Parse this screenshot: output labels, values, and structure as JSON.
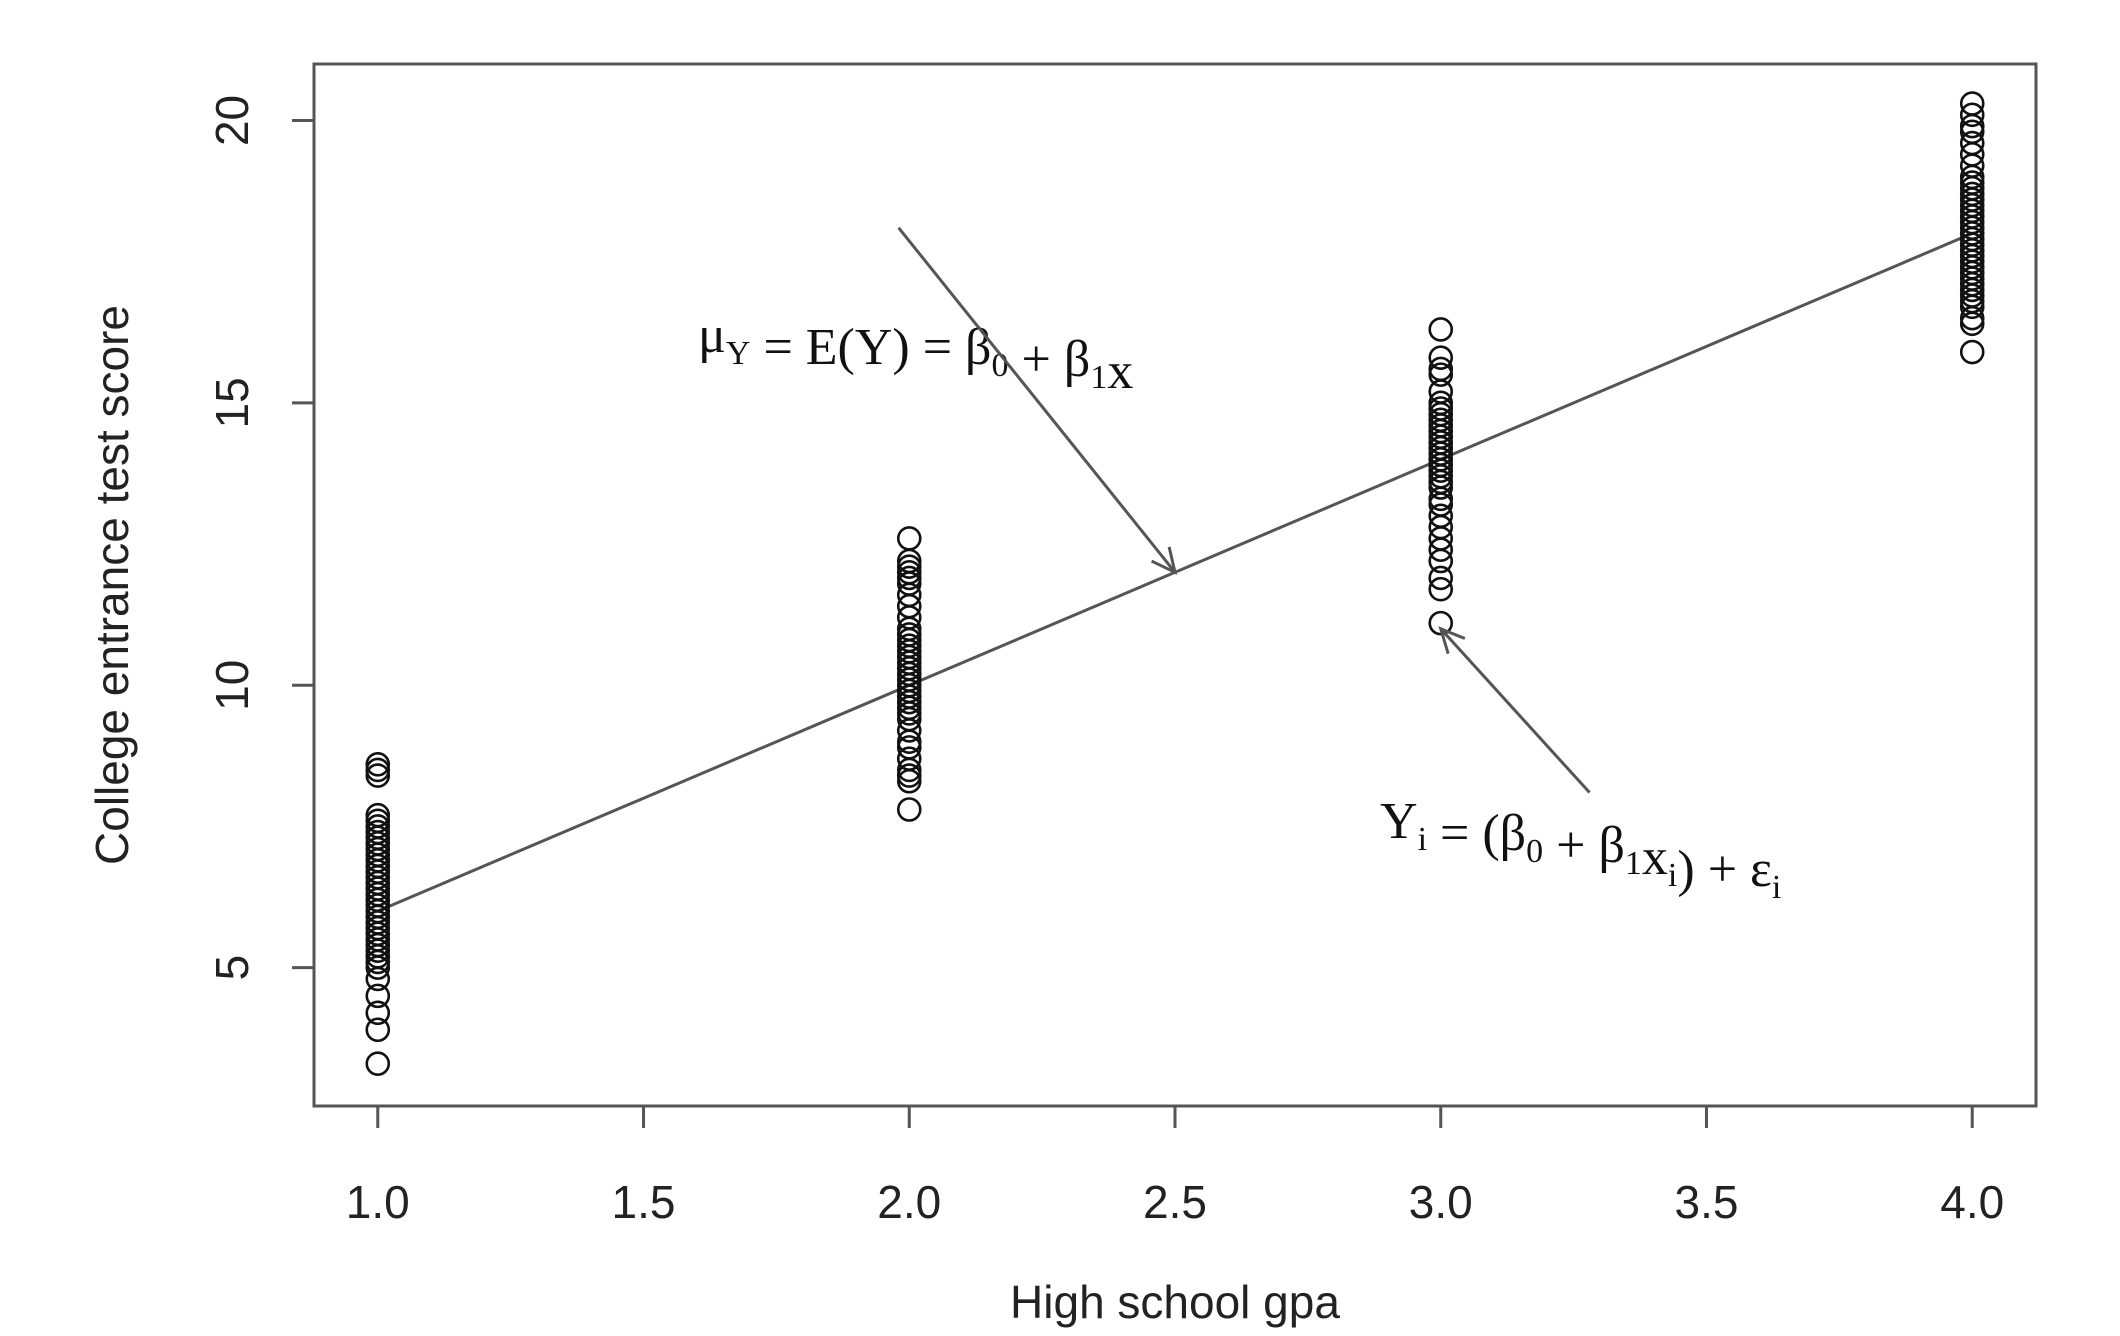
{
  "chart_data": {
    "type": "scatter",
    "xlabel": "High school gpa",
    "ylabel": "College entrance test score",
    "xlim": [
      0.88,
      4.12
    ],
    "ylim": [
      2.55,
      21.0
    ],
    "x_ticks": [
      "1.0",
      "1.5",
      "2.0",
      "2.5",
      "3.0",
      "3.5",
      "4.0"
    ],
    "x_tick_values": [
      1.0,
      1.5,
      2.0,
      2.5,
      3.0,
      3.5,
      4.0
    ],
    "y_ticks": [
      "5",
      "10",
      "15",
      "20"
    ],
    "y_tick_values": [
      5,
      10,
      15,
      20
    ],
    "grid": false,
    "regression_line": {
      "intercept": 2,
      "slope": 4,
      "x_range": [
        1.0,
        4.0
      ]
    },
    "points": [
      {
        "x": 1.0,
        "y": [
          3.3,
          3.9,
          4.2,
          4.5,
          4.8,
          5.0,
          5.1,
          5.2,
          5.3,
          5.4,
          5.5,
          5.6,
          5.7,
          5.8,
          5.9,
          6.0,
          6.1,
          6.2,
          6.3,
          6.4,
          6.5,
          6.6,
          6.7,
          6.8,
          6.9,
          7.0,
          7.1,
          7.2,
          7.3,
          7.4,
          7.5,
          7.6,
          7.7,
          8.4,
          8.5,
          8.6
        ]
      },
      {
        "x": 2.0,
        "y": [
          7.8,
          8.3,
          8.4,
          8.5,
          8.7,
          8.9,
          9.0,
          9.2,
          9.4,
          9.5,
          9.6,
          9.7,
          9.8,
          9.9,
          10.0,
          10.1,
          10.2,
          10.3,
          10.4,
          10.5,
          10.6,
          10.7,
          10.8,
          10.9,
          11.0,
          11.2,
          11.4,
          11.6,
          11.8,
          11.9,
          12.0,
          12.1,
          12.2,
          12.6
        ]
      },
      {
        "x": 3.0,
        "y": [
          11.1,
          11.7,
          11.9,
          12.2,
          12.4,
          12.6,
          12.8,
          13.0,
          13.2,
          13.3,
          13.5,
          13.6,
          13.7,
          13.8,
          13.9,
          14.0,
          14.1,
          14.2,
          14.3,
          14.4,
          14.5,
          14.6,
          14.7,
          14.8,
          14.9,
          15.0,
          15.2,
          15.5,
          15.6,
          15.8,
          16.3
        ]
      },
      {
        "x": 4.0,
        "y": [
          15.9,
          16.4,
          16.5,
          16.7,
          16.8,
          16.9,
          17.0,
          17.1,
          17.2,
          17.3,
          17.4,
          17.5,
          17.6,
          17.7,
          17.8,
          17.9,
          18.0,
          18.1,
          18.2,
          18.3,
          18.4,
          18.5,
          18.6,
          18.7,
          18.8,
          18.9,
          19.0,
          19.2,
          19.4,
          19.6,
          19.8,
          19.9,
          20.1,
          20.3
        ]
      }
    ],
    "annotations": [
      {
        "parts": [
          {
            "text": "μ",
            "sub": "Y"
          },
          {
            "text": " = E(Y) = β",
            "sub": "0"
          },
          {
            "text": " + β",
            "sub": "1"
          },
          {
            "text": "x",
            "sub": ""
          }
        ],
        "arrow_from": [
          1.98,
          18.1
        ],
        "arrow_to": [
          2.5,
          12.0
        ]
      },
      {
        "parts": [
          {
            "text": "Y",
            "sub": "i"
          },
          {
            "text": " = (β",
            "sub": "0"
          },
          {
            "text": " + β",
            "sub": "1"
          },
          {
            "text": "x",
            "sub": "i"
          },
          {
            "text": ") + ε",
            "sub": "i"
          }
        ],
        "arrow_from": [
          3.28,
          8.1
        ],
        "arrow_to": [
          3.0,
          11.0
        ]
      }
    ]
  }
}
